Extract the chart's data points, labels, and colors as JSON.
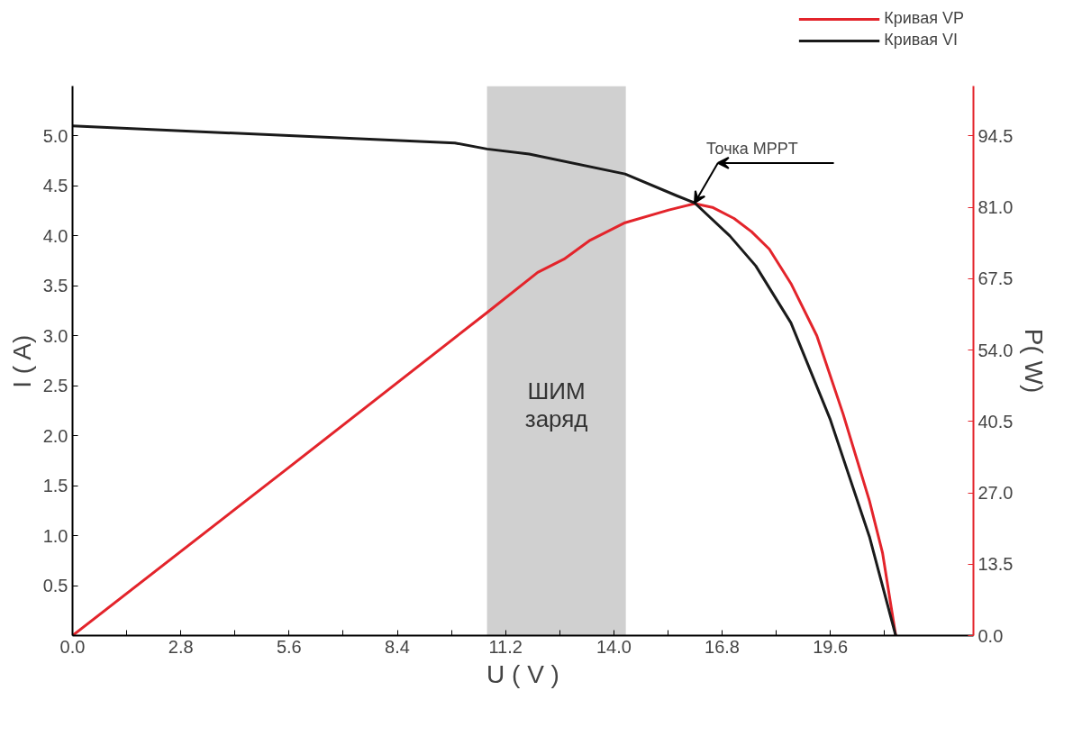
{
  "chart_data": {
    "type": "line",
    "xlabel": "U ( V )",
    "ylabel": "I ( A)",
    "y2label": "P( W)",
    "xlim": [
      0,
      23.3
    ],
    "ylim": [
      0,
      5.5
    ],
    "y2lim": [
      0,
      103.95
    ],
    "xticks": [
      {
        "value": 0,
        "label": "0.0"
      },
      {
        "value": 1.4,
        "label": null
      },
      {
        "value": 2.8,
        "label": "2.8"
      },
      {
        "value": 4.2,
        "label": null
      },
      {
        "value": 5.6,
        "label": "5.6"
      },
      {
        "value": 7.0,
        "label": null
      },
      {
        "value": 8.4,
        "label": "8.4"
      },
      {
        "value": 9.8,
        "label": null
      },
      {
        "value": 11.2,
        "label": "11.2"
      },
      {
        "value": 12.6,
        "label": null
      },
      {
        "value": 14.0,
        "label": "14.0"
      },
      {
        "value": 15.4,
        "label": null
      },
      {
        "value": 16.8,
        "label": "16.8"
      },
      {
        "value": 18.2,
        "label": null
      },
      {
        "value": 19.6,
        "label": "19.6"
      },
      {
        "value": 21.0,
        "label": null
      }
    ],
    "yticks": [
      0.5,
      {
        "value": 1.0,
        "label": "1.0"
      },
      1.5,
      {
        "value": 2.0,
        "label": "2.0"
      },
      2.5,
      {
        "value": 3.0,
        "label": "3.0"
      },
      3.5,
      {
        "value": 4.0,
        "label": "4.0"
      },
      4.5,
      {
        "value": 5.0,
        "label": "5.0"
      }
    ],
    "y2ticks": [
      {
        "value": 0,
        "label": "0.0"
      },
      13.5,
      {
        "value": 27.0,
        "label": "27.0"
      },
      40.5,
      {
        "value": 54.0,
        "label": "54.0"
      },
      67.5,
      {
        "value": 81.0,
        "label": "81.0"
      },
      94.5
    ],
    "series": [
      {
        "name": "Кривая VP",
        "color": "#e3242b",
        "axis": "y2",
        "x": [
          0,
          5.49,
          10.72,
          12.03,
          12.71,
          13.39,
          14.29,
          15.42,
          16.09,
          16.55,
          17.11,
          17.56,
          18.02,
          18.58,
          19.25,
          19.93,
          20.61,
          20.95,
          21.29
        ],
        "values": [
          0,
          31.2,
          61.1,
          68.7,
          71.2,
          74.8,
          78.1,
          80.5,
          81.7,
          81.0,
          78.9,
          76.4,
          73.1,
          66.6,
          56.7,
          41.9,
          25.5,
          15.6,
          0
        ]
      },
      {
        "name": "Кривая VI",
        "color": "#1a1a1a",
        "x": [
          0,
          9.89,
          10.72,
          11.81,
          14.29,
          15.64,
          16.09,
          17.0,
          17.67,
          18.58,
          19.59,
          20.61,
          21.29
        ],
        "values": [
          5.1,
          4.93,
          4.87,
          4.82,
          4.62,
          4.4,
          4.33,
          4.0,
          3.7,
          3.13,
          2.17,
          0.99,
          0
        ]
      }
    ],
    "bands": [
      {
        "axis": "x",
        "from": 10.72,
        "to": 14.31,
        "label": "ШИМ\nзаряд",
        "color": "#d0d0d0"
      }
    ],
    "annotations": [
      {
        "text": "Точка MPPT",
        "x": 16.09,
        "y": 4.33
      }
    ],
    "grid": false,
    "legend": "top right",
    "line_style": "solid",
    "marker": "none"
  }
}
